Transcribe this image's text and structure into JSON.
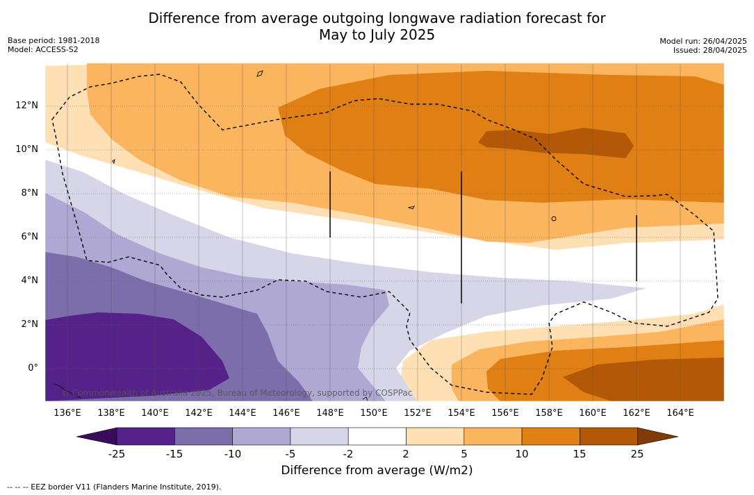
{
  "title_line1": "Difference from average outgoing longwave radiation forecast for",
  "title_line2": "May to July 2025",
  "meta_left": {
    "base_period": "Base period: 1981-2018",
    "model": "Model: ACCESS-S2"
  },
  "meta_right": {
    "model_run": "Model run: 26/04/2025",
    "issued": "Issued: 28/04/2025"
  },
  "copyright": "© Commonwealth of Australia 2025, Bureau of Meteorology, supported by COSPPac",
  "lat_labels": [
    "12°N",
    "10°N",
    "8°N",
    "6°N",
    "4°N",
    "2°N",
    "0°"
  ],
  "lon_labels": [
    "136°E",
    "138°E",
    "140°E",
    "142°E",
    "144°E",
    "146°E",
    "148°E",
    "150°E",
    "152°E",
    "154°E",
    "156°E",
    "158°E",
    "160°E",
    "162°E",
    "164°E"
  ],
  "colorbar": {
    "labels": [
      "-25",
      "-15",
      "-10",
      "-5",
      "-2",
      "2",
      "5",
      "10",
      "15",
      "25"
    ],
    "colors": [
      "#542288",
      "#7c6dab",
      "#aea8d2",
      "#d7d6e9",
      "#ffffff",
      "#fee0b4",
      "#fbb55e",
      "#df7f14",
      "#b35806"
    ],
    "extend_low_color": "#3b0b5e",
    "extend_high_color": "#7f3b08",
    "title": "Difference from average (W/m2)"
  },
  "footnote": "--  --  -- EEZ border V11 (Flanders Marine Institute, 2019)."
}
